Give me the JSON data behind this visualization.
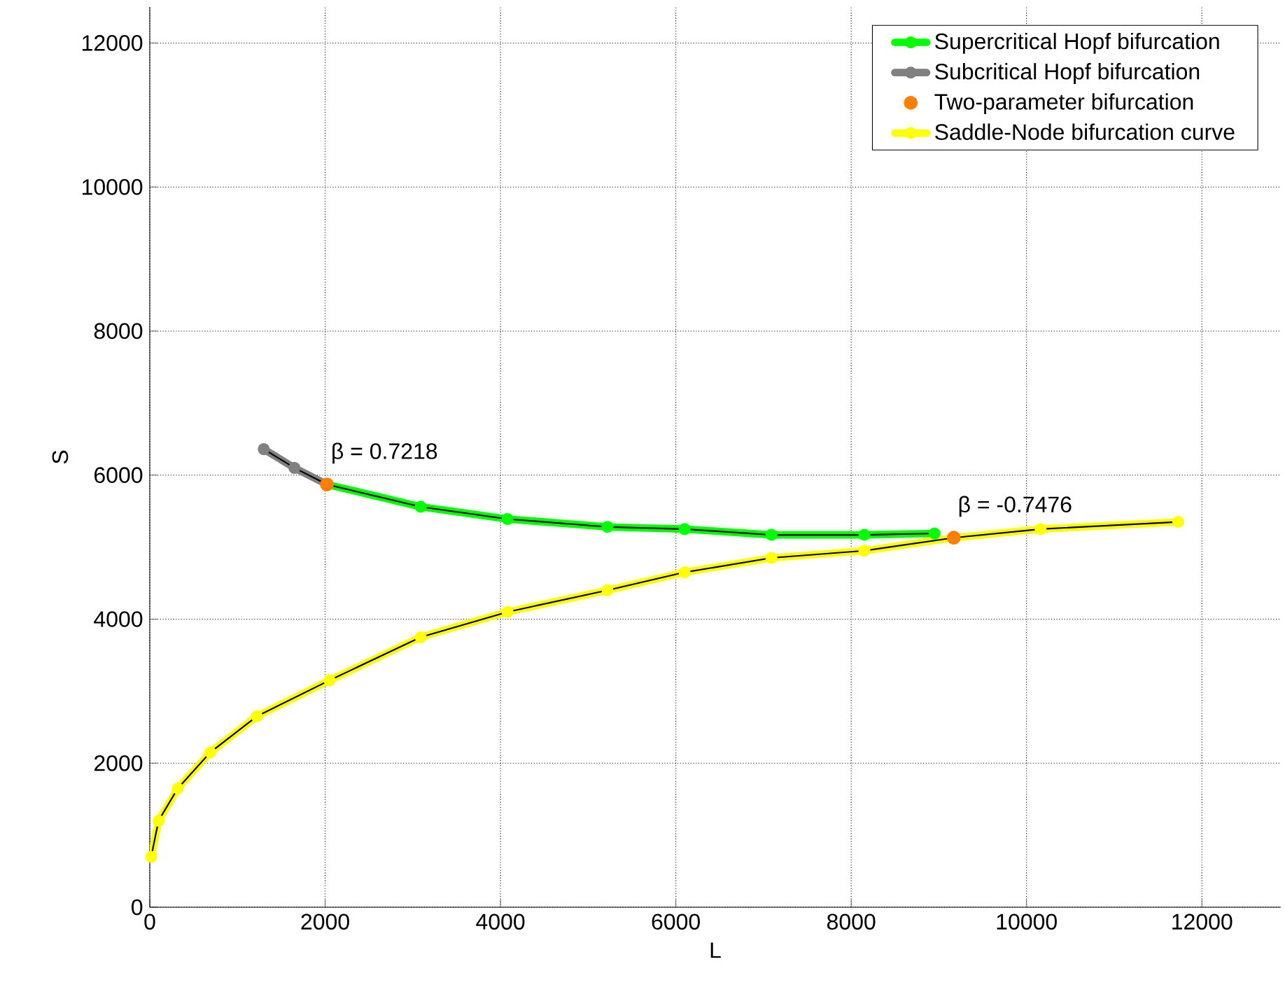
{
  "chart_data": {
    "type": "line",
    "xlabel": "L",
    "ylabel": "S",
    "xlim": [
      0,
      12900
    ],
    "ylim": [
      0,
      12500
    ],
    "xticks": [
      0,
      2000,
      4000,
      6000,
      8000,
      10000,
      12000
    ],
    "yticks": [
      0,
      2000,
      4000,
      6000,
      8000,
      10000,
      12000
    ],
    "grid": true,
    "legend": "top right",
    "marker": "circle",
    "series": [
      {
        "name": "Supercritical Hopf bifurcation",
        "color": "#00ff00",
        "x": [
          2020,
          3090,
          4080,
          5220,
          6100,
          7090,
          8150,
          8950
        ],
        "values": [
          5870,
          5560,
          5390,
          5280,
          5250,
          5170,
          5170,
          5190
        ]
      },
      {
        "name": "Subcritical Hopf bifurcation",
        "color": "#808080",
        "x": [
          1300,
          1650,
          2020
        ],
        "values": [
          6360,
          6100,
          5870
        ]
      },
      {
        "name": "Two-parameter bifurcation",
        "type": "scatter",
        "color": "#ff7f00",
        "x": [
          2020,
          9170
        ],
        "values": [
          5870,
          5130
        ]
      },
      {
        "name": "Saddle-Node bifurcation curve",
        "color": "#ffff00",
        "x": [
          16,
          100,
          320,
          690,
          1220,
          2050,
          3090,
          4080,
          5220,
          6100,
          7090,
          8150,
          9170,
          10160,
          11730
        ],
        "values": [
          700,
          1200,
          1650,
          2150,
          2650,
          3150,
          3750,
          4100,
          4400,
          4650,
          4850,
          4950,
          5130,
          5250,
          5350
        ]
      }
    ],
    "annotations": [
      {
        "text": "β = 0.7218",
        "x": 2020,
        "y": 5870
      },
      {
        "text": "β = -0.7476",
        "x": 9170,
        "y": 5130
      }
    ]
  }
}
